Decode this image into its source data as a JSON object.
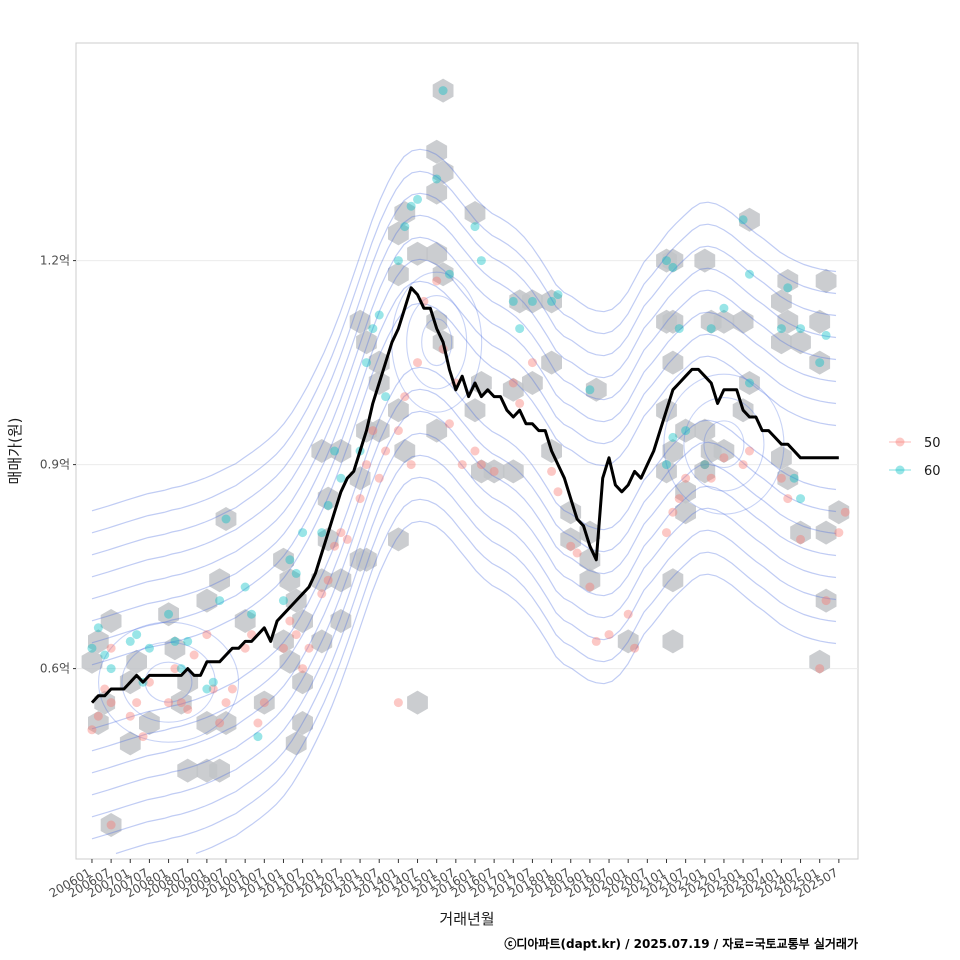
{
  "chart_data": {
    "type": "scatter",
    "xlabel": "거래년월",
    "ylabel": "매매가(원)",
    "caption": "ⓒ디아파트(dapt.kr) / 2025.07.19 / 자료=국토교통부 실거래가",
    "x_ticks": [
      "200601",
      "200607",
      "200701",
      "200707",
      "200801",
      "200807",
      "200901",
      "200907",
      "201001",
      "201007",
      "201101",
      "201107",
      "201201",
      "201207",
      "201301",
      "201307",
      "201401",
      "201407",
      "201501",
      "201507",
      "201601",
      "201607",
      "201701",
      "201707",
      "201801",
      "201807",
      "201901",
      "201907",
      "202001",
      "202007",
      "202101",
      "202107",
      "202201",
      "202207",
      "202301",
      "202307",
      "202401",
      "202407",
      "202501",
      "202507"
    ],
    "xlim": [
      "200508",
      "202601"
    ],
    "y_unit": "억원",
    "ylim": [
      0.32,
      1.52
    ],
    "y_ticks": [
      {
        "value": 0.6,
        "label": "0.6억"
      },
      {
        "value": 0.9,
        "label": "0.9억"
      },
      {
        "value": 1.2,
        "label": "1.2억"
      }
    ],
    "grid": true,
    "legend_position": "right",
    "legend": [
      {
        "name": "50",
        "color": "#f8766d"
      },
      {
        "name": "60",
        "color": "#00bfc4"
      }
    ],
    "colors": {
      "series_50": "#f8766d",
      "series_60": "#00bfc4",
      "hexbin": "#c2c4c8",
      "contour": "#4a6ee0",
      "trend": "#000000",
      "frame": "#cccccc",
      "gridline": "#ebebeb"
    },
    "hexbins": [
      [
        200601,
        0.61
      ],
      [
        200603,
        0.64
      ],
      [
        200607,
        0.67
      ],
      [
        200603,
        0.52
      ],
      [
        200605,
        0.55
      ],
      [
        200701,
        0.58
      ],
      [
        200703,
        0.61
      ],
      [
        200801,
        0.68
      ],
      [
        200803,
        0.63
      ],
      [
        200807,
        0.58
      ],
      [
        200805,
        0.55
      ],
      [
        200707,
        0.52
      ],
      [
        200701,
        0.49
      ],
      [
        200807,
        0.45
      ],
      [
        200901,
        0.45
      ],
      [
        200905,
        0.45
      ],
      [
        200901,
        0.52
      ],
      [
        200907,
        0.52
      ],
      [
        200901,
        0.7
      ],
      [
        200905,
        0.73
      ],
      [
        200907,
        0.82
      ],
      [
        201001,
        0.67
      ],
      [
        201007,
        0.55
      ],
      [
        201101,
        0.76
      ],
      [
        201103,
        0.73
      ],
      [
        201105,
        0.7
      ],
      [
        201107,
        0.67
      ],
      [
        201101,
        0.64
      ],
      [
        201103,
        0.61
      ],
      [
        201107,
        0.52
      ],
      [
        201105,
        0.49
      ],
      [
        201107,
        0.58
      ],
      [
        201201,
        0.64
      ],
      [
        201201,
        0.73
      ],
      [
        201203,
        0.79
      ],
      [
        201207,
        0.73
      ],
      [
        201207,
        0.67
      ],
      [
        201203,
        0.85
      ],
      [
        201207,
        0.92
      ],
      [
        201201,
        0.92
      ],
      [
        201301,
        0.76
      ],
      [
        201303,
        0.76
      ],
      [
        201301,
        0.88
      ],
      [
        201303,
        0.95
      ],
      [
        201307,
        0.95
      ],
      [
        201301,
        1.11
      ],
      [
        201303,
        1.08
      ],
      [
        201307,
        1.02
      ],
      [
        201307,
        1.05
      ],
      [
        201401,
        0.98
      ],
      [
        201403,
        0.92
      ],
      [
        201401,
        0.79
      ],
      [
        201407,
        0.55
      ],
      [
        201401,
        1.24
      ],
      [
        201403,
        1.27
      ],
      [
        201407,
        1.21
      ],
      [
        201401,
        1.18
      ],
      [
        201501,
        1.3
      ],
      [
        201503,
        1.33
      ],
      [
        201501,
        1.36
      ],
      [
        201501,
        1.21
      ],
      [
        201503,
        1.18
      ],
      [
        201501,
        1.11
      ],
      [
        201503,
        1.08
      ],
      [
        201501,
        0.95
      ],
      [
        201503,
        1.45
      ],
      [
        201601,
        1.27
      ],
      [
        201601,
        0.98
      ],
      [
        201603,
        1.02
      ],
      [
        201603,
        0.89
      ],
      [
        201607,
        0.89
      ],
      [
        201701,
        0.89
      ],
      [
        201701,
        1.01
      ],
      [
        201703,
        1.14
      ],
      [
        201707,
        1.14
      ],
      [
        201801,
        1.14
      ],
      [
        201707,
        1.02
      ],
      [
        201801,
        1.05
      ],
      [
        201801,
        0.92
      ],
      [
        201807,
        0.79
      ],
      [
        201807,
        0.83
      ],
      [
        201901,
        0.76
      ],
      [
        201901,
        0.73
      ],
      [
        201901,
        0.8
      ],
      [
        201903,
        1.01
      ],
      [
        202001,
        0.64
      ],
      [
        202101,
        1.2
      ],
      [
        202103,
        1.2
      ],
      [
        202201,
        1.2
      ],
      [
        202101,
        1.11
      ],
      [
        202103,
        1.11
      ],
      [
        202103,
        1.05
      ],
      [
        202101,
        0.98
      ],
      [
        202101,
        0.89
      ],
      [
        202103,
        0.92
      ],
      [
        202107,
        0.95
      ],
      [
        202107,
        0.86
      ],
      [
        202107,
        0.83
      ],
      [
        202103,
        0.73
      ],
      [
        202103,
        0.64
      ],
      [
        202201,
        0.95
      ],
      [
        202203,
        0.92
      ],
      [
        202207,
        0.92
      ],
      [
        202201,
        0.89
      ],
      [
        202203,
        1.11
      ],
      [
        202207,
        1.11
      ],
      [
        202301,
        1.11
      ],
      [
        202303,
        1.26
      ],
      [
        202301,
        0.98
      ],
      [
        202303,
        1.02
      ],
      [
        202401,
        1.14
      ],
      [
        202403,
        1.17
      ],
      [
        202401,
        1.08
      ],
      [
        202403,
        1.11
      ],
      [
        202407,
        1.08
      ],
      [
        202401,
        0.91
      ],
      [
        202403,
        0.88
      ],
      [
        202407,
        0.8
      ],
      [
        202503,
        1.17
      ],
      [
        202501,
        1.05
      ],
      [
        202501,
        1.11
      ],
      [
        202507,
        0.83
      ],
      [
        202503,
        0.8
      ],
      [
        202503,
        0.7
      ],
      [
        202501,
        0.61
      ],
      [
        200607,
        0.37
      ]
    ],
    "points_50": [
      [
        200601,
        0.51
      ],
      [
        200603,
        0.53
      ],
      [
        200605,
        0.57
      ],
      [
        200607,
        0.55
      ],
      [
        200607,
        0.63
      ],
      [
        200701,
        0.53
      ],
      [
        200703,
        0.55
      ],
      [
        200705,
        0.5
      ],
      [
        200707,
        0.58
      ],
      [
        200801,
        0.55
      ],
      [
        200803,
        0.6
      ],
      [
        200805,
        0.55
      ],
      [
        200807,
        0.54
      ],
      [
        200809,
        0.62
      ],
      [
        200901,
        0.65
      ],
      [
        200903,
        0.57
      ],
      [
        200905,
        0.52
      ],
      [
        200907,
        0.55
      ],
      [
        200909,
        0.57
      ],
      [
        201001,
        0.63
      ],
      [
        201003,
        0.65
      ],
      [
        201005,
        0.52
      ],
      [
        201007,
        0.55
      ],
      [
        201101,
        0.63
      ],
      [
        201103,
        0.67
      ],
      [
        201105,
        0.65
      ],
      [
        201107,
        0.6
      ],
      [
        201109,
        0.63
      ],
      [
        201201,
        0.71
      ],
      [
        201203,
        0.73
      ],
      [
        201205,
        0.78
      ],
      [
        201207,
        0.8
      ],
      [
        201209,
        0.79
      ],
      [
        201301,
        0.85
      ],
      [
        201303,
        0.9
      ],
      [
        201305,
        0.95
      ],
      [
        201307,
        0.88
      ],
      [
        201309,
        0.92
      ],
      [
        201401,
        0.95
      ],
      [
        201403,
        1.0
      ],
      [
        201405,
        0.9
      ],
      [
        201407,
        1.05
      ],
      [
        201409,
        1.14
      ],
      [
        201501,
        1.17
      ],
      [
        201503,
        1.07
      ],
      [
        201505,
        0.96
      ],
      [
        201507,
        1.02
      ],
      [
        201509,
        0.9
      ],
      [
        201601,
        0.92
      ],
      [
        201603,
        0.9
      ],
      [
        201607,
        0.89
      ],
      [
        201701,
        1.02
      ],
      [
        201703,
        0.99
      ],
      [
        201707,
        1.05
      ],
      [
        201801,
        0.89
      ],
      [
        201803,
        0.86
      ],
      [
        201807,
        0.78
      ],
      [
        201809,
        0.77
      ],
      [
        201901,
        0.72
      ],
      [
        201903,
        0.64
      ],
      [
        201907,
        0.65
      ],
      [
        202001,
        0.68
      ],
      [
        202003,
        0.63
      ],
      [
        202101,
        0.8
      ],
      [
        202103,
        0.83
      ],
      [
        202105,
        0.85
      ],
      [
        202107,
        0.88
      ],
      [
        202201,
        0.9
      ],
      [
        202203,
        0.88
      ],
      [
        202207,
        0.91
      ],
      [
        202301,
        0.9
      ],
      [
        202303,
        0.92
      ],
      [
        202401,
        0.88
      ],
      [
        202403,
        0.85
      ],
      [
        202407,
        0.79
      ],
      [
        202501,
        0.6
      ],
      [
        202503,
        0.7
      ],
      [
        202507,
        0.8
      ],
      [
        202509,
        0.83
      ],
      [
        200607,
        0.37
      ],
      [
        201401,
        0.55
      ]
    ],
    "points_60": [
      [
        200601,
        0.63
      ],
      [
        200603,
        0.66
      ],
      [
        200605,
        0.62
      ],
      [
        200607,
        0.6
      ],
      [
        200701,
        0.64
      ],
      [
        200703,
        0.65
      ],
      [
        200705,
        0.58
      ],
      [
        200707,
        0.63
      ],
      [
        200801,
        0.68
      ],
      [
        200803,
        0.64
      ],
      [
        200805,
        0.6
      ],
      [
        200807,
        0.64
      ],
      [
        200901,
        0.57
      ],
      [
        200903,
        0.58
      ],
      [
        200905,
        0.7
      ],
      [
        200907,
        0.82
      ],
      [
        201001,
        0.72
      ],
      [
        201003,
        0.68
      ],
      [
        201005,
        0.5
      ],
      [
        201101,
        0.7
      ],
      [
        201103,
        0.76
      ],
      [
        201105,
        0.74
      ],
      [
        201107,
        0.8
      ],
      [
        201201,
        0.8
      ],
      [
        201203,
        0.84
      ],
      [
        201205,
        0.92
      ],
      [
        201207,
        0.88
      ],
      [
        201301,
        0.92
      ],
      [
        201303,
        1.05
      ],
      [
        201305,
        1.1
      ],
      [
        201307,
        1.12
      ],
      [
        201309,
        1.0
      ],
      [
        201401,
        1.2
      ],
      [
        201403,
        1.25
      ],
      [
        201405,
        1.28
      ],
      [
        201407,
        1.29
      ],
      [
        201501,
        1.32
      ],
      [
        201503,
        1.45
      ],
      [
        201505,
        1.18
      ],
      [
        201601,
        1.25
      ],
      [
        201603,
        1.2
      ],
      [
        201701,
        1.14
      ],
      [
        201703,
        1.1
      ],
      [
        201707,
        1.14
      ],
      [
        201801,
        1.14
      ],
      [
        201803,
        1.15
      ],
      [
        201901,
        1.01
      ],
      [
        202101,
        1.2
      ],
      [
        202103,
        1.19
      ],
      [
        202105,
        1.1
      ],
      [
        202107,
        0.95
      ],
      [
        202201,
        0.9
      ],
      [
        202203,
        1.1
      ],
      [
        202207,
        1.13
      ],
      [
        202301,
        1.26
      ],
      [
        202303,
        1.18
      ],
      [
        202401,
        1.1
      ],
      [
        202403,
        1.16
      ],
      [
        202407,
        1.1
      ],
      [
        202501,
        1.05
      ],
      [
        202503,
        1.09
      ],
      [
        202101,
        0.9
      ],
      [
        202103,
        0.94
      ],
      [
        202407,
        0.85
      ],
      [
        202303,
        1.02
      ],
      [
        202405,
        0.88
      ]
    ],
    "trend_line": [
      [
        200601,
        0.55
      ],
      [
        200603,
        0.56
      ],
      [
        200605,
        0.56
      ],
      [
        200607,
        0.57
      ],
      [
        200609,
        0.57
      ],
      [
        200611,
        0.57
      ],
      [
        200701,
        0.58
      ],
      [
        200703,
        0.59
      ],
      [
        200705,
        0.58
      ],
      [
        200707,
        0.59
      ],
      [
        200709,
        0.59
      ],
      [
        200711,
        0.59
      ],
      [
        200801,
        0.59
      ],
      [
        200803,
        0.59
      ],
      [
        200805,
        0.59
      ],
      [
        200807,
        0.6
      ],
      [
        200809,
        0.59
      ],
      [
        200811,
        0.59
      ],
      [
        200901,
        0.61
      ],
      [
        200903,
        0.61
      ],
      [
        200905,
        0.61
      ],
      [
        200907,
        0.62
      ],
      [
        200909,
        0.63
      ],
      [
        200911,
        0.63
      ],
      [
        201001,
        0.64
      ],
      [
        201003,
        0.64
      ],
      [
        201005,
        0.65
      ],
      [
        201007,
        0.66
      ],
      [
        201009,
        0.64
      ],
      [
        201011,
        0.67
      ],
      [
        201101,
        0.68
      ],
      [
        201103,
        0.69
      ],
      [
        201105,
        0.7
      ],
      [
        201107,
        0.71
      ],
      [
        201109,
        0.72
      ],
      [
        201111,
        0.74
      ],
      [
        201201,
        0.77
      ],
      [
        201203,
        0.8
      ],
      [
        201205,
        0.83
      ],
      [
        201207,
        0.86
      ],
      [
        201209,
        0.88
      ],
      [
        201211,
        0.89
      ],
      [
        201301,
        0.92
      ],
      [
        201303,
        0.95
      ],
      [
        201305,
        0.99
      ],
      [
        201307,
        1.02
      ],
      [
        201309,
        1.05
      ],
      [
        201311,
        1.08
      ],
      [
        201401,
        1.1
      ],
      [
        201403,
        1.13
      ],
      [
        201405,
        1.16
      ],
      [
        201407,
        1.15
      ],
      [
        201409,
        1.13
      ],
      [
        201411,
        1.13
      ],
      [
        201501,
        1.1
      ],
      [
        201503,
        1.08
      ],
      [
        201505,
        1.04
      ],
      [
        201507,
        1.01
      ],
      [
        201509,
        1.03
      ],
      [
        201511,
        1.0
      ],
      [
        201601,
        1.02
      ],
      [
        201603,
        1.0
      ],
      [
        201605,
        1.01
      ],
      [
        201607,
        1.0
      ],
      [
        201609,
        1.0
      ],
      [
        201611,
        0.98
      ],
      [
        201701,
        0.97
      ],
      [
        201703,
        0.98
      ],
      [
        201705,
        0.96
      ],
      [
        201707,
        0.96
      ],
      [
        201709,
        0.95
      ],
      [
        201711,
        0.95
      ],
      [
        201801,
        0.92
      ],
      [
        201803,
        0.9
      ],
      [
        201805,
        0.88
      ],
      [
        201807,
        0.85
      ],
      [
        201809,
        0.82
      ],
      [
        201811,
        0.81
      ],
      [
        201901,
        0.78
      ],
      [
        201903,
        0.76
      ],
      [
        201905,
        0.88
      ],
      [
        201907,
        0.91
      ],
      [
        201909,
        0.87
      ],
      [
        201911,
        0.86
      ],
      [
        202001,
        0.87
      ],
      [
        202003,
        0.89
      ],
      [
        202005,
        0.88
      ],
      [
        202007,
        0.9
      ],
      [
        202009,
        0.92
      ],
      [
        202011,
        0.95
      ],
      [
        202101,
        0.98
      ],
      [
        202103,
        1.01
      ],
      [
        202105,
        1.02
      ],
      [
        202107,
        1.03
      ],
      [
        202109,
        1.04
      ],
      [
        202111,
        1.04
      ],
      [
        202201,
        1.03
      ],
      [
        202203,
        1.02
      ],
      [
        202205,
        0.99
      ],
      [
        202207,
        1.01
      ],
      [
        202209,
        1.01
      ],
      [
        202211,
        1.01
      ],
      [
        202301,
        0.98
      ],
      [
        202303,
        0.97
      ],
      [
        202305,
        0.97
      ],
      [
        202307,
        0.95
      ],
      [
        202309,
        0.95
      ],
      [
        202311,
        0.94
      ],
      [
        202401,
        0.93
      ],
      [
        202403,
        0.93
      ],
      [
        202405,
        0.92
      ],
      [
        202407,
        0.91
      ],
      [
        202409,
        0.91
      ],
      [
        202411,
        0.91
      ],
      [
        202501,
        0.91
      ],
      [
        202503,
        0.91
      ],
      [
        202505,
        0.91
      ],
      [
        202507,
        0.91
      ]
    ]
  }
}
